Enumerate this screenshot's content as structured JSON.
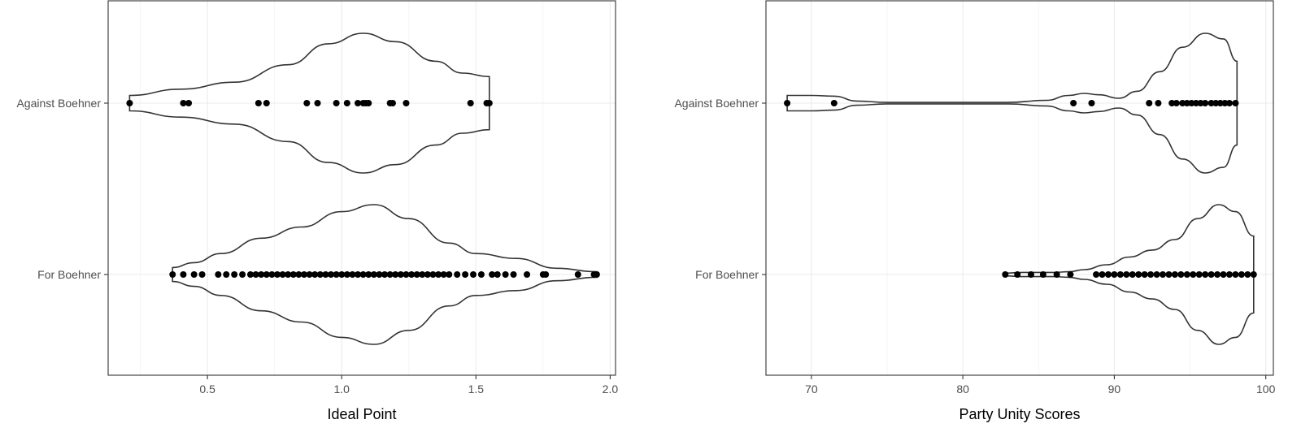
{
  "chart_data": [
    {
      "type": "violin",
      "xlabel": "Ideal Point",
      "xlim": [
        0.13,
        2.02
      ],
      "x_ticks": [
        "0.5",
        "1.0",
        "1.5",
        "2.0"
      ],
      "categories": [
        "Against Boehner",
        "For Boehner"
      ],
      "grid": true,
      "groups": [
        {
          "name": "Against Boehner",
          "range": [
            0.21,
            1.55
          ],
          "peak": 1.08,
          "points": [
            0.21,
            0.41,
            0.43,
            0.69,
            0.72,
            0.87,
            0.91,
            0.98,
            1.02,
            1.06,
            1.08,
            1.09,
            1.1,
            1.18,
            1.19,
            1.24,
            1.48,
            1.54,
            1.55
          ],
          "profile": [
            [
              0.21,
              0.11
            ],
            [
              0.4,
              0.2
            ],
            [
              0.6,
              0.3
            ],
            [
              0.8,
              0.55
            ],
            [
              0.95,
              0.85
            ],
            [
              1.08,
              1.0
            ],
            [
              1.2,
              0.88
            ],
            [
              1.35,
              0.6
            ],
            [
              1.45,
              0.43
            ],
            [
              1.55,
              0.38
            ]
          ]
        },
        {
          "name": "For Boehner",
          "range": [
            0.37,
            1.95
          ],
          "peak": 1.12,
          "points": [
            0.37,
            0.41,
            0.45,
            0.48,
            0.54,
            0.57,
            0.6,
            0.63,
            0.66,
            0.68,
            0.7,
            0.72,
            0.74,
            0.76,
            0.78,
            0.8,
            0.82,
            0.84,
            0.86,
            0.88,
            0.9,
            0.92,
            0.94,
            0.96,
            0.98,
            1.0,
            1.02,
            1.04,
            1.06,
            1.08,
            1.1,
            1.12,
            1.14,
            1.16,
            1.18,
            1.2,
            1.22,
            1.24,
            1.26,
            1.28,
            1.3,
            1.32,
            1.34,
            1.36,
            1.38,
            1.4,
            1.43,
            1.46,
            1.49,
            1.52,
            1.56,
            1.58,
            1.61,
            1.64,
            1.69,
            1.75,
            1.76,
            1.88,
            1.94,
            1.95
          ],
          "profile": [
            [
              0.37,
              0.1
            ],
            [
              0.45,
              0.17
            ],
            [
              0.55,
              0.3
            ],
            [
              0.7,
              0.52
            ],
            [
              0.85,
              0.68
            ],
            [
              1.0,
              0.9
            ],
            [
              1.12,
              1.0
            ],
            [
              1.25,
              0.8
            ],
            [
              1.4,
              0.45
            ],
            [
              1.5,
              0.3
            ],
            [
              1.65,
              0.23
            ],
            [
              1.8,
              0.09
            ],
            [
              1.95,
              0.04
            ]
          ]
        }
      ]
    },
    {
      "type": "violin",
      "xlabel": "Party Unity Scores",
      "xlim": [
        67,
        100.5
      ],
      "x_ticks": [
        "70",
        "80",
        "90",
        "100"
      ],
      "categories": [
        "Against Boehner",
        "For Boehner"
      ],
      "grid": true,
      "groups": [
        {
          "name": "Against Boehner",
          "range": [
            68.4,
            98.1
          ],
          "peak": 96.0,
          "points": [
            68.4,
            71.5,
            87.3,
            88.5,
            92.3,
            92.9,
            93.8,
            94.1,
            94.5,
            94.8,
            95.1,
            95.4,
            95.7,
            96.0,
            96.4,
            96.7,
            97.0,
            97.3,
            97.6,
            98.0
          ],
          "profile": [
            [
              68.4,
              0.11
            ],
            [
              70,
              0.11
            ],
            [
              71.5,
              0.1
            ],
            [
              73,
              0.03
            ],
            [
              75,
              0.01
            ],
            [
              80,
              0.01
            ],
            [
              83,
              0.01
            ],
            [
              85.5,
              0.04
            ],
            [
              87,
              0.11
            ],
            [
              88,
              0.14
            ],
            [
              89,
              0.12
            ],
            [
              90.3,
              0.07
            ],
            [
              91.5,
              0.17
            ],
            [
              93,
              0.45
            ],
            [
              94.5,
              0.8
            ],
            [
              96.0,
              1.0
            ],
            [
              97.2,
              0.92
            ],
            [
              98.1,
              0.6
            ]
          ]
        },
        {
          "name": "For Boehner",
          "range": [
            82.8,
            99.2
          ],
          "peak": 96.9,
          "points": [
            82.8,
            83.6,
            84.5,
            85.3,
            86.2,
            87.1,
            88.8,
            89.2,
            89.6,
            90.0,
            90.4,
            90.8,
            91.2,
            91.6,
            92.0,
            92.4,
            92.8,
            93.2,
            93.6,
            94.0,
            94.4,
            94.8,
            95.2,
            95.6,
            96.0,
            96.4,
            96.8,
            97.2,
            97.6,
            98.0,
            98.4,
            98.8,
            99.2
          ],
          "profile": [
            [
              82.8,
              0.02
            ],
            [
              84,
              0.03
            ],
            [
              86,
              0.03
            ],
            [
              87,
              0.04
            ],
            [
              88,
              0.07
            ],
            [
              89.5,
              0.14
            ],
            [
              91,
              0.25
            ],
            [
              92.5,
              0.35
            ],
            [
              94,
              0.5
            ],
            [
              95.5,
              0.8
            ],
            [
              96.9,
              1.0
            ],
            [
              98,
              0.9
            ],
            [
              99.2,
              0.55
            ]
          ]
        }
      ]
    }
  ]
}
